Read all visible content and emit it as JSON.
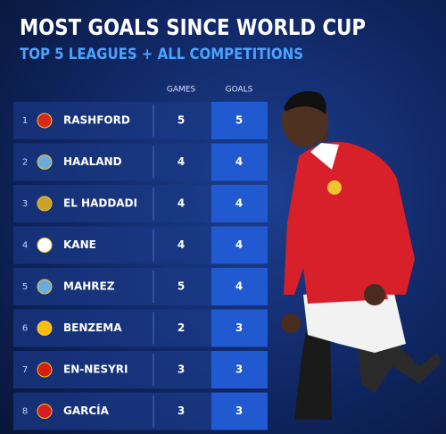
{
  "header": {
    "title": "MOST GOALS SINCE WORLD CUP",
    "subtitle": "TOP 5 LEAGUES + ALL COMPETITIONS"
  },
  "table": {
    "columns": [
      "GAMES",
      "GOALS"
    ],
    "rows": [
      [
        1,
        "RASHFORD",
        5,
        5
      ],
      [
        2,
        "HAALAND",
        4,
        4
      ],
      [
        3,
        "EL HADDADI",
        4,
        4
      ],
      [
        4,
        "KANE",
        4,
        4
      ],
      [
        5,
        "MAHREZ",
        5,
        4
      ],
      [
        6,
        "BENZEMA",
        2,
        3
      ],
      [
        7,
        "EN-NESYRI",
        3,
        3
      ],
      [
        8,
        "GARCÍA",
        3,
        3
      ]
    ]
  }
}
